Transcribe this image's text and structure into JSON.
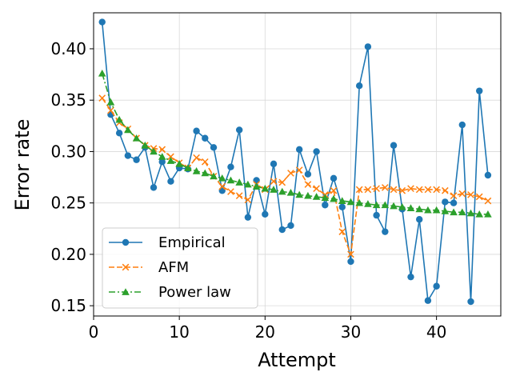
{
  "chart_data": {
    "type": "line",
    "title": "",
    "xlabel": "Attempt",
    "ylabel": "Error rate",
    "xlim": [
      0,
      47.5
    ],
    "ylim": [
      0.14,
      0.435
    ],
    "x_ticks": [
      0,
      10,
      20,
      30,
      40
    ],
    "y_ticks": [
      0.15,
      0.2,
      0.25,
      0.3,
      0.35,
      0.4
    ],
    "x_tick_labels": [
      "0",
      "10",
      "20",
      "30",
      "40"
    ],
    "y_tick_labels": [
      "0.15",
      "0.20",
      "0.25",
      "0.30",
      "0.35",
      "0.40"
    ],
    "grid": true,
    "legend_position": "lower-left",
    "x": [
      1,
      2,
      3,
      4,
      5,
      6,
      7,
      8,
      9,
      10,
      11,
      12,
      13,
      14,
      15,
      16,
      17,
      18,
      19,
      20,
      21,
      22,
      23,
      24,
      25,
      26,
      27,
      28,
      29,
      30,
      31,
      32,
      33,
      34,
      35,
      36,
      37,
      38,
      39,
      40,
      41,
      42,
      43,
      44,
      45,
      46
    ],
    "series": [
      {
        "name": "Empirical",
        "color": "#1f77b4",
        "line_style": "solid",
        "marker": "circle",
        "values": [
          0.426,
          0.336,
          0.318,
          0.296,
          0.292,
          0.304,
          0.265,
          0.29,
          0.271,
          0.284,
          0.283,
          0.32,
          0.313,
          0.304,
          0.262,
          0.285,
          0.321,
          0.236,
          0.272,
          0.239,
          0.288,
          0.224,
          0.228,
          0.302,
          0.278,
          0.3,
          0.248,
          0.274,
          0.246,
          0.193,
          0.364,
          0.402,
          0.238,
          0.222,
          0.306,
          0.244,
          0.178,
          0.234,
          0.155,
          0.169,
          0.251,
          0.25,
          0.326,
          0.154,
          0.359,
          0.277
        ]
      },
      {
        "name": "AFM",
        "color": "#ff7f0e",
        "line_style": "dashed",
        "marker": "x",
        "values": [
          0.352,
          0.34,
          0.328,
          0.322,
          0.313,
          0.306,
          0.303,
          0.302,
          0.295,
          0.289,
          0.284,
          0.294,
          0.29,
          0.276,
          0.266,
          0.261,
          0.257,
          0.253,
          0.268,
          0.263,
          0.271,
          0.27,
          0.279,
          0.282,
          0.268,
          0.264,
          0.258,
          0.262,
          0.222,
          0.2,
          0.263,
          0.263,
          0.264,
          0.265,
          0.263,
          0.262,
          0.264,
          0.263,
          0.263,
          0.263,
          0.262,
          0.257,
          0.259,
          0.258,
          0.256,
          0.252
        ]
      },
      {
        "name": "Power law",
        "color": "#2ca02c",
        "line_style": "dashdot",
        "marker": "triangle",
        "values": [
          0.376,
          0.348,
          0.331,
          0.321,
          0.313,
          0.306,
          0.3,
          0.295,
          0.291,
          0.288,
          0.284,
          0.281,
          0.279,
          0.276,
          0.274,
          0.272,
          0.27,
          0.268,
          0.266,
          0.264,
          0.263,
          0.261,
          0.26,
          0.258,
          0.257,
          0.256,
          0.255,
          0.254,
          0.252,
          0.251,
          0.25,
          0.249,
          0.248,
          0.248,
          0.247,
          0.246,
          0.245,
          0.244,
          0.243,
          0.243,
          0.242,
          0.241,
          0.241,
          0.24,
          0.239,
          0.239
        ]
      }
    ]
  }
}
